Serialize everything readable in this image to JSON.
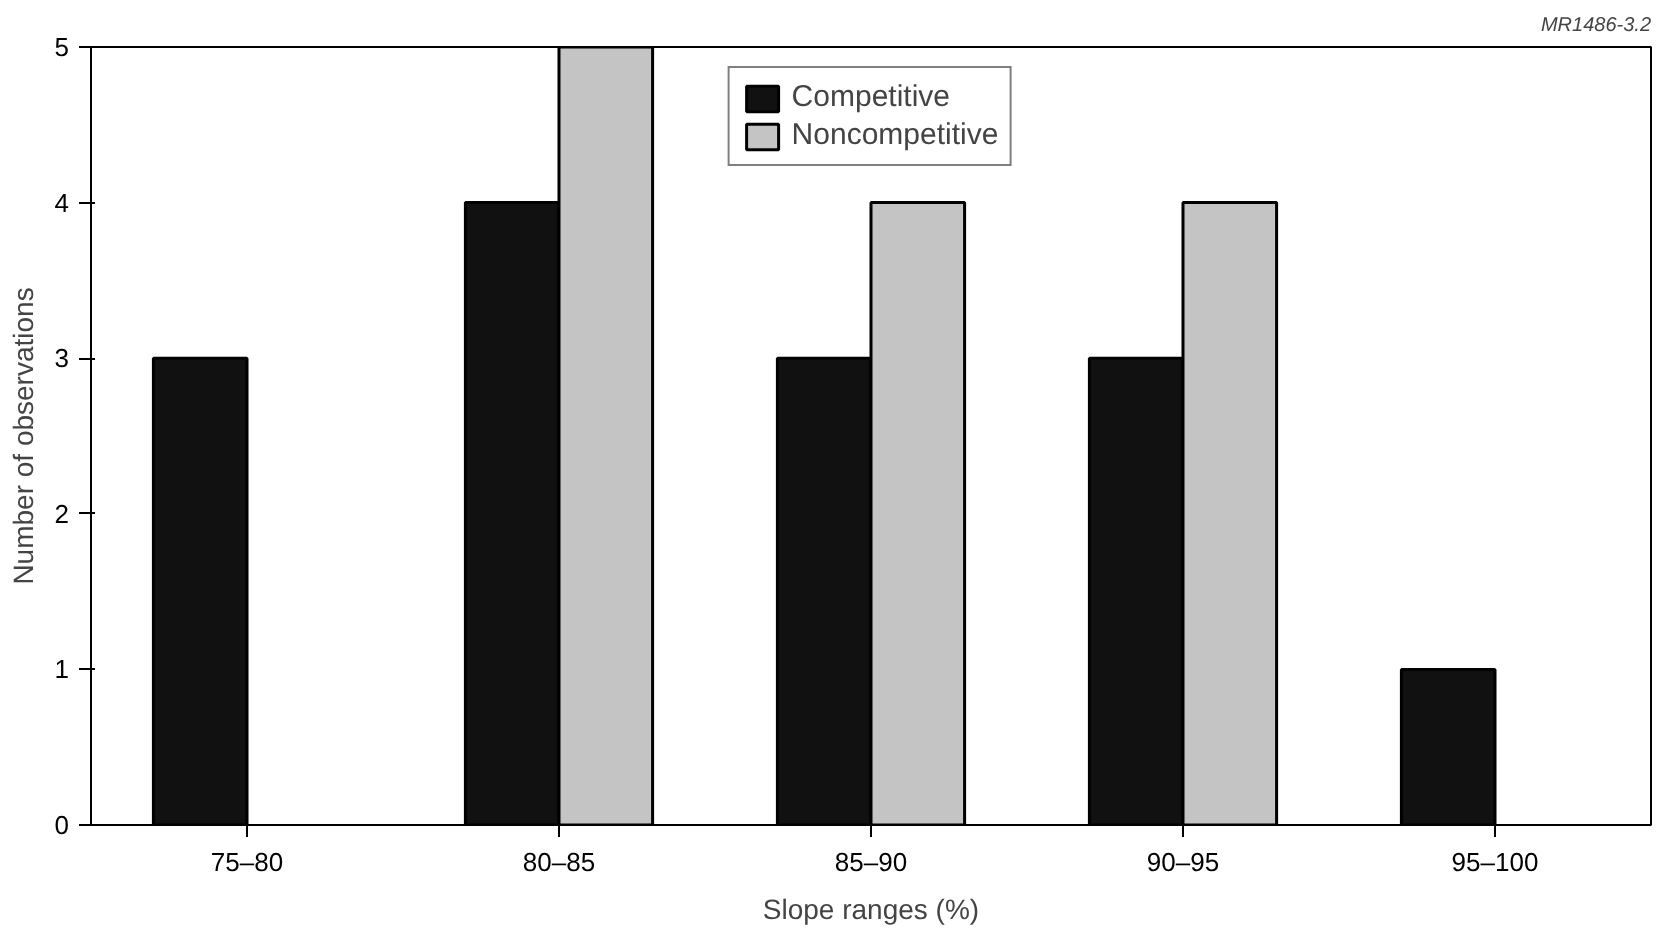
{
  "chart_data": {
    "type": "bar",
    "xlabel": "Slope ranges (%)",
    "ylabel": "Number of observations",
    "categories": [
      "75–80",
      "80–85",
      "85–90",
      "90–95",
      "95–100"
    ],
    "series": [
      {
        "name": "Competitive",
        "color": "#111111",
        "values": [
          3,
          4,
          3,
          3,
          1
        ]
      },
      {
        "name": "Noncompetitive",
        "color": "#c4c4c4",
        "values": [
          null,
          5,
          4,
          4,
          null
        ]
      }
    ],
    "ylim": [
      0,
      5
    ],
    "yticks": [
      0,
      1,
      2,
      3,
      4,
      5
    ],
    "grid": false,
    "legend": "top",
    "annotations": [
      "MR1486-3.2"
    ]
  }
}
